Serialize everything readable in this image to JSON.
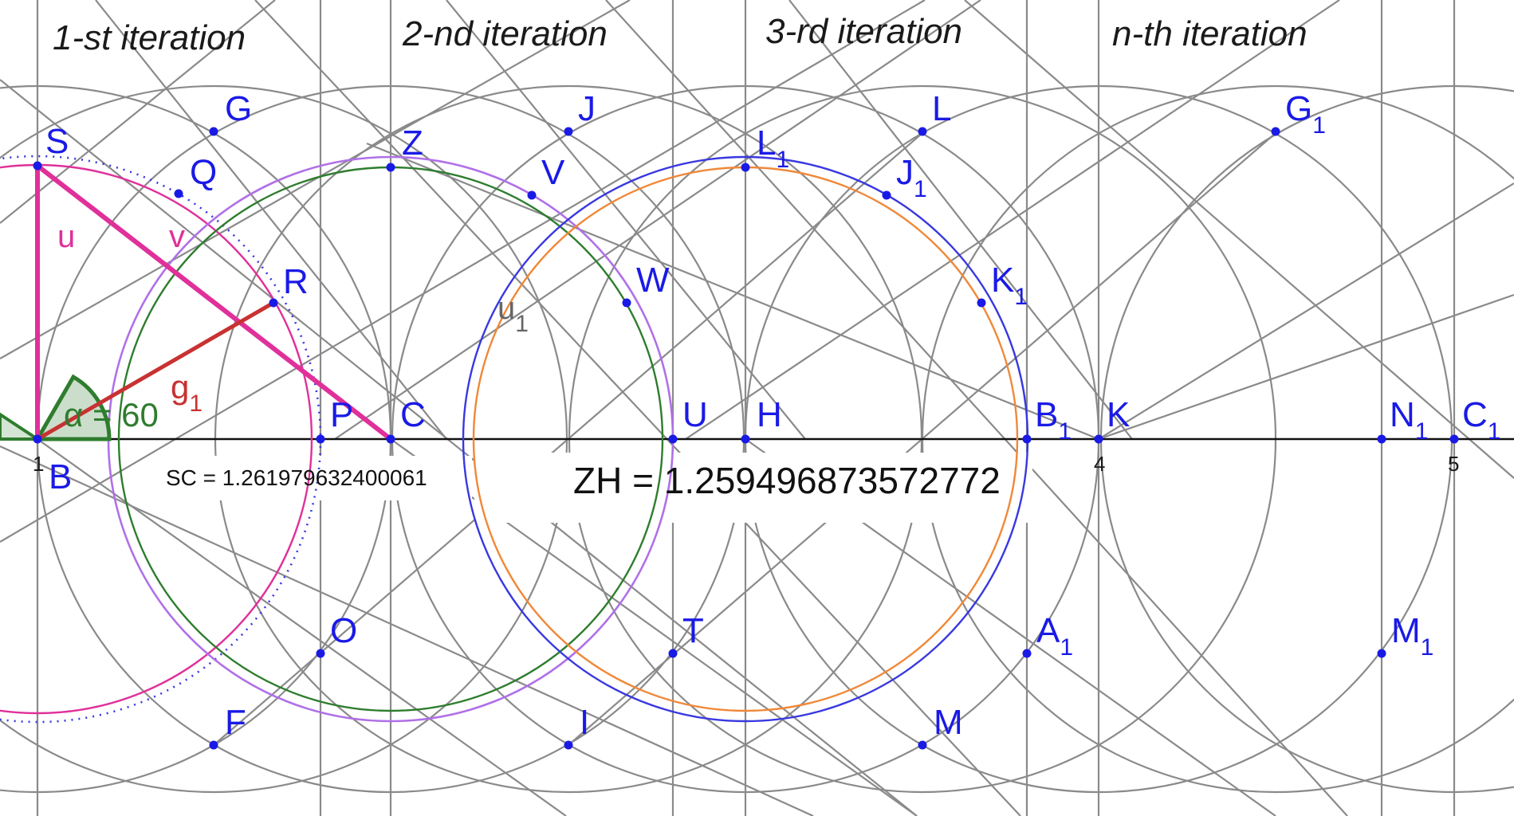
{
  "iterations": [
    "1-st iteration",
    "2-nd iteration",
    "3-rd iteration",
    "n-th iteration"
  ],
  "axis_ticks": [
    "1",
    "4",
    "5"
  ],
  "measurements": {
    "sc": "SC = 1.261979632400061",
    "zh": "ZH = 1.259496873572772"
  },
  "angle_label": {
    "text": "α = 60"
  },
  "segment_labels": {
    "u": "u",
    "v": "v",
    "g": "g",
    "g_sub": "1",
    "u1": "u",
    "u1_sub": "1"
  },
  "points": [
    {
      "name": "S",
      "sub": ""
    },
    {
      "name": "G",
      "sub": ""
    },
    {
      "name": "Q",
      "sub": ""
    },
    {
      "name": "R",
      "sub": ""
    },
    {
      "name": "P",
      "sub": ""
    },
    {
      "name": "C",
      "sub": ""
    },
    {
      "name": "B",
      "sub": ""
    },
    {
      "name": "Z",
      "sub": ""
    },
    {
      "name": "J",
      "sub": ""
    },
    {
      "name": "V",
      "sub": ""
    },
    {
      "name": "W",
      "sub": ""
    },
    {
      "name": "U",
      "sub": ""
    },
    {
      "name": "H",
      "sub": ""
    },
    {
      "name": "L",
      "sub": "1"
    },
    {
      "name": "L",
      "sub": ""
    },
    {
      "name": "J",
      "sub": "1"
    },
    {
      "name": "K",
      "sub": "1"
    },
    {
      "name": "B",
      "sub": "1"
    },
    {
      "name": "K",
      "sub": ""
    },
    {
      "name": "G",
      "sub": "1"
    },
    {
      "name": "N",
      "sub": "1"
    },
    {
      "name": "C",
      "sub": "1"
    },
    {
      "name": "O",
      "sub": ""
    },
    {
      "name": "T",
      "sub": ""
    },
    {
      "name": "A",
      "sub": "1"
    },
    {
      "name": "M",
      "sub": "1"
    },
    {
      "name": "F",
      "sub": ""
    },
    {
      "name": "I",
      "sub": ""
    },
    {
      "name": "M",
      "sub": ""
    }
  ],
  "colors": {
    "construction": "#8a8a8a",
    "points": "#1a1ae6",
    "magenta": "#e0309a",
    "purple": "#b070e8",
    "green": "#2e7d2e",
    "blue": "#3838e0",
    "orange": "#f08838",
    "red": "#c83232"
  }
}
